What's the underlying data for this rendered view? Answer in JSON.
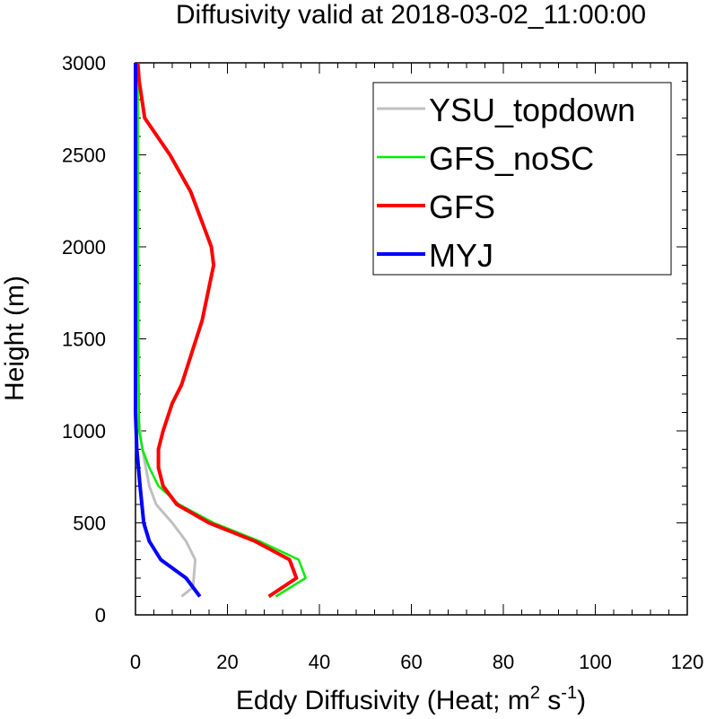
{
  "chart_data": {
    "type": "line",
    "title": "Diffusivity valid at 2018-03-02_11:00:00",
    "xlabel": "Eddy Diffusivity (Heat; m",
    "xlabel_sup1": "2",
    "xlabel_mid": " s",
    "xlabel_sup2": "-1",
    "xlabel_end": ")",
    "ylabel": "Height (m)",
    "xlim": [
      0,
      120
    ],
    "ylim": [
      0,
      3000
    ],
    "xticks": [
      0,
      20,
      40,
      60,
      80,
      100,
      120
    ],
    "yticks": [
      0,
      500,
      1000,
      1500,
      2000,
      2500,
      3000
    ],
    "x_tick_labels": [
      "0",
      "20",
      "40",
      "60",
      "80",
      "100",
      "120"
    ],
    "y_tick_labels": [
      "0",
      "500",
      "1000",
      "1500",
      "2000",
      "2500",
      "3000"
    ],
    "grid": false,
    "legend_position": "top-right",
    "series": [
      {
        "name": "YSU_topdown",
        "color": "#c0c0c0",
        "stroke": 3,
        "points": [
          [
            10,
            100
          ],
          [
            12.5,
            150
          ],
          [
            13,
            300
          ],
          [
            11,
            400
          ],
          [
            8,
            500
          ],
          [
            4.5,
            600
          ],
          [
            3,
            700
          ],
          [
            1.5,
            900
          ],
          [
            0.5,
            1100
          ],
          [
            0.2,
            1500
          ],
          [
            0,
            3000
          ]
        ]
      },
      {
        "name": "GFS_noSC",
        "color": "#00ee00",
        "stroke": 2.5,
        "points": [
          [
            30.5,
            100
          ],
          [
            37,
            200
          ],
          [
            35.5,
            300
          ],
          [
            27,
            400
          ],
          [
            17,
            500
          ],
          [
            9.5,
            600
          ],
          [
            5,
            700
          ],
          [
            3,
            800
          ],
          [
            1.5,
            900
          ],
          [
            0.8,
            1000
          ],
          [
            0.6,
            1500
          ],
          [
            0.5,
            2000
          ],
          [
            0.5,
            2500
          ],
          [
            0.5,
            3000
          ]
        ]
      },
      {
        "name": "GFS",
        "color": "#ff0000",
        "stroke": 4,
        "points": [
          [
            29,
            100
          ],
          [
            35,
            200
          ],
          [
            33.5,
            300
          ],
          [
            26,
            400
          ],
          [
            16,
            500
          ],
          [
            9,
            600
          ],
          [
            6,
            700
          ],
          [
            5,
            800
          ],
          [
            5,
            900
          ],
          [
            6,
            1000
          ],
          [
            8,
            1150
          ],
          [
            10,
            1250
          ],
          [
            14.5,
            1600
          ],
          [
            17,
            1900
          ],
          [
            16.5,
            2000
          ],
          [
            12,
            2300
          ],
          [
            7.5,
            2500
          ],
          [
            2,
            2700
          ],
          [
            0.8,
            2900
          ],
          [
            0.5,
            3000
          ]
        ]
      },
      {
        "name": "MYJ",
        "color": "#0000ff",
        "stroke": 4,
        "points": [
          [
            14,
            100
          ],
          [
            11,
            200
          ],
          [
            5.5,
            300
          ],
          [
            3,
            400
          ],
          [
            1.8,
            500
          ],
          [
            1,
            700
          ],
          [
            0.3,
            900
          ],
          [
            0,
            1100
          ],
          [
            0,
            3000
          ]
        ]
      }
    ]
  }
}
